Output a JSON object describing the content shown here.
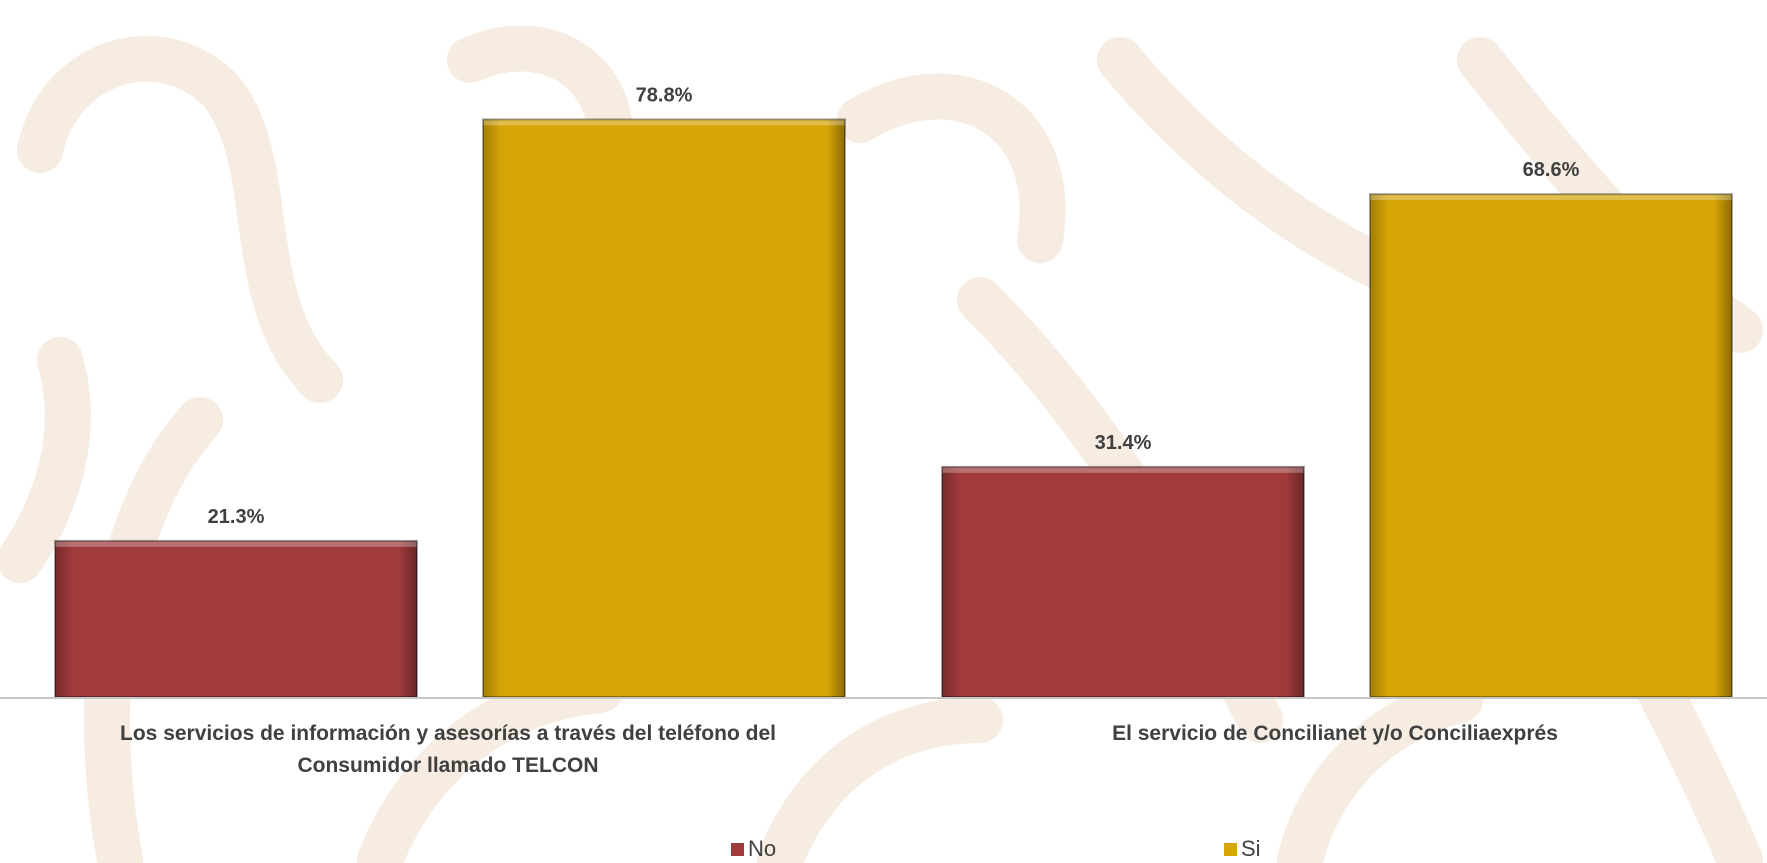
{
  "colors": {
    "no": "#a03a3c",
    "si": "#d6a506",
    "label": "#404040",
    "axis": "#c7c7c7",
    "watermark": "#f6ece2"
  },
  "chart_data": {
    "type": "bar",
    "categories": [
      [
        "Los servicios de información y asesorías a través del teléfono del",
        "Consumidor llamado TELCON"
      ],
      [
        "El servicio de Concilianet y/o Conciliaexprés"
      ]
    ],
    "series": [
      {
        "name": "No",
        "values": [
          21.3,
          31.4
        ],
        "labels": [
          "21.3%",
          "31.4%"
        ],
        "color": "#a03a3c"
      },
      {
        "name": "Si",
        "values": [
          78.8,
          68.6
        ],
        "labels": [
          "78.8%",
          "68.6%"
        ],
        "color": "#d6a506"
      }
    ],
    "ylim": [
      0,
      80
    ],
    "grid": false,
    "legend_position": "bottom"
  },
  "legend": {
    "no_label": "No",
    "si_label": "Si"
  }
}
